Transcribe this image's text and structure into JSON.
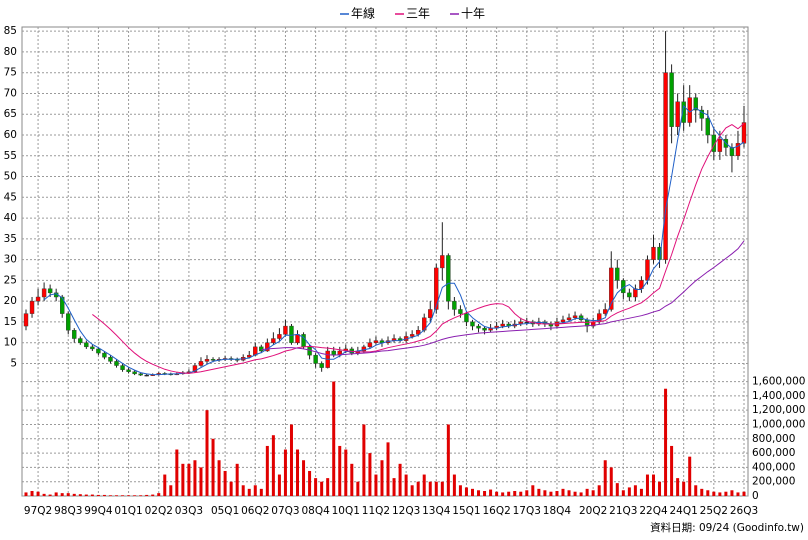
{
  "chart_data": {
    "type": "candlestick",
    "categories": [
      null,
      null,
      "97Q2",
      null,
      null,
      null,
      null,
      "98Q3",
      null,
      null,
      null,
      null,
      "99Q4",
      null,
      null,
      null,
      null,
      "01Q1",
      null,
      null,
      null,
      null,
      "02Q2",
      null,
      null,
      null,
      null,
      "03Q3",
      null,
      null,
      null,
      null,
      null,
      "05Q1",
      null,
      null,
      null,
      null,
      "06Q2",
      null,
      null,
      null,
      null,
      "07Q3",
      null,
      null,
      null,
      null,
      "08Q4",
      null,
      null,
      null,
      null,
      "10Q1",
      null,
      null,
      null,
      null,
      "11Q2",
      null,
      null,
      null,
      null,
      "12Q3",
      null,
      null,
      null,
      null,
      "13Q4",
      null,
      null,
      null,
      null,
      "15Q1",
      null,
      null,
      null,
      null,
      "16Q2",
      null,
      null,
      null,
      null,
      "17Q3",
      null,
      null,
      null,
      null,
      "18Q4",
      null,
      null,
      null,
      null,
      null,
      "20Q2",
      null,
      null,
      null,
      null,
      "21Q3",
      null,
      null,
      null,
      null,
      "22Q4",
      null,
      null,
      null,
      null,
      "24Q1",
      null,
      null,
      null,
      null,
      "25Q2",
      null,
      null,
      null,
      null,
      "26Q3"
    ],
    "open": [
      14,
      17,
      20,
      21,
      23,
      22,
      21,
      17,
      13,
      11,
      10,
      9,
      8.5,
      7.5,
      6.5,
      5.5,
      4.5,
      3.5,
      3,
      2.5,
      2.2,
      2.2,
      2.3,
      2.6,
      2.5,
      2.4,
      2.5,
      2.8,
      3,
      4.5,
      5.5,
      6,
      5.8,
      6,
      6.2,
      6,
      5.8,
      6.5,
      7,
      9,
      8,
      10,
      11,
      12,
      14,
      10,
      12,
      9,
      7,
      5,
      4,
      8,
      7,
      8,
      8.5,
      7.5,
      8,
      9,
      10,
      10.5,
      10,
      10.5,
      11,
      10.5,
      11.5,
      12,
      13,
      16,
      18,
      28,
      31,
      20,
      18,
      17,
      15,
      14,
      13.5,
      13,
      13.5,
      14,
      14.5,
      14,
      14.5,
      15,
      15,
      14.5,
      15,
      14.5,
      14,
      15,
      15.5,
      16,
      16.5,
      15.5,
      14,
      15,
      17,
      18,
      28,
      25,
      22,
      21,
      23,
      25,
      30,
      33,
      30,
      75,
      62,
      68,
      63,
      69,
      66,
      64,
      60,
      56,
      59,
      57,
      55,
      58
    ],
    "high": [
      18,
      21,
      23,
      24.5,
      24,
      23,
      21.5,
      17.5,
      13.5,
      11.5,
      10.5,
      9.5,
      9,
      8,
      7,
      6,
      5,
      4,
      3.3,
      2.8,
      2.5,
      2.6,
      2.9,
      2.9,
      2.8,
      2.8,
      3.2,
      3.6,
      5,
      6.5,
      7,
      6.5,
      6.5,
      6.8,
      6.7,
      6.4,
      7.2,
      8,
      10,
      9.5,
      11,
      12.5,
      13.5,
      15.5,
      14.5,
      13,
      12.5,
      9.5,
      7.5,
      5.5,
      9,
      9,
      9,
      9.5,
      9,
      9,
      9.5,
      11,
      11.5,
      11,
      11.5,
      12,
      11.5,
      12.5,
      13,
      14,
      17,
      20,
      29,
      39,
      31.5,
      21,
      19,
      17.5,
      15.5,
      14.5,
      14,
      14.5,
      15,
      15.5,
      15,
      15.5,
      16,
      16,
      15.5,
      16,
      15.5,
      15,
      16,
      16.5,
      17,
      17.5,
      17,
      16,
      16,
      18,
      19.5,
      32,
      30,
      25.5,
      23,
      24,
      26,
      31,
      36,
      34,
      85,
      77,
      70,
      72,
      72,
      70,
      67,
      66,
      62,
      61,
      60,
      58,
      61,
      67
    ],
    "low": [
      13,
      16,
      19,
      20,
      21,
      20,
      16,
      12,
      10,
      9.5,
      8.5,
      8,
      7,
      6,
      5,
      4,
      3,
      2.6,
      2.2,
      2,
      1.9,
      2,
      2.1,
      2.2,
      2.1,
      2.2,
      2.3,
      2.5,
      2.8,
      4.2,
      5,
      5.3,
      5.4,
      5.6,
      5.6,
      5.3,
      5.5,
      6.2,
      6.8,
      7.5,
      7.8,
      9.5,
      10.5,
      11.5,
      9.5,
      9.5,
      8.5,
      6,
      4,
      3,
      3.8,
      6.5,
      6.5,
      7.5,
      7,
      7,
      7.5,
      8.5,
      9.5,
      9,
      9.5,
      10,
      10,
      10,
      11,
      11.5,
      12.5,
      15,
      17,
      25,
      18,
      16.5,
      16,
      14,
      13,
      12.5,
      12,
      12.5,
      13,
      13.5,
      13.5,
      13.5,
      14,
      14.2,
      13.8,
      14,
      13.8,
      13,
      13.5,
      14.5,
      15,
      15.5,
      15,
      12.5,
      13.5,
      14.5,
      16.5,
      17.5,
      23,
      20.5,
      20,
      20,
      22,
      24,
      29,
      28,
      29,
      58,
      60,
      61,
      62,
      63,
      61,
      58,
      54,
      54,
      55,
      51,
      54,
      57
    ],
    "close": [
      17,
      20,
      21,
      23,
      22,
      21,
      17,
      13,
      11,
      10,
      9,
      8.5,
      7.5,
      6.5,
      5.5,
      4.5,
      3.5,
      3,
      2.5,
      2.2,
      2.2,
      2.3,
      2.6,
      2.5,
      2.4,
      2.5,
      2.8,
      3,
      4.5,
      5.5,
      6,
      5.8,
      6,
      6.2,
      6,
      5.8,
      6.5,
      7,
      9,
      8,
      10,
      11,
      12,
      14,
      10,
      12,
      9,
      7,
      5,
      4,
      8,
      7,
      8,
      8.5,
      7.5,
      8,
      9,
      10,
      10.5,
      10,
      10.5,
      11,
      10.5,
      11.5,
      12,
      13,
      16,
      18,
      28,
      31,
      20,
      18,
      17,
      15,
      14,
      13.5,
      13,
      13.5,
      14,
      14.5,
      14,
      14.5,
      15,
      15,
      14.5,
      15,
      14.5,
      14,
      15,
      15.5,
      16,
      16.5,
      15.5,
      14,
      15,
      17,
      18,
      28,
      25,
      22,
      21,
      23,
      25,
      30,
      33,
      30,
      75,
      62,
      68,
      63,
      69,
      66,
      64,
      60,
      56,
      59,
      57,
      55,
      58,
      63
    ],
    "volume": [
      50000,
      70000,
      60000,
      30000,
      20000,
      50000,
      40000,
      40000,
      30000,
      25000,
      20000,
      20000,
      15000,
      15000,
      10000,
      10000,
      10000,
      10000,
      10000,
      10000,
      15000,
      20000,
      40000,
      300000,
      150000,
      650000,
      450000,
      450000,
      500000,
      400000,
      1200000,
      800000,
      500000,
      350000,
      200000,
      450000,
      150000,
      100000,
      150000,
      100000,
      700000,
      850000,
      300000,
      650000,
      1000000,
      650000,
      500000,
      350000,
      250000,
      200000,
      250000,
      1600000,
      700000,
      650000,
      450000,
      200000,
      1000000,
      600000,
      300000,
      500000,
      750000,
      250000,
      450000,
      300000,
      150000,
      200000,
      300000,
      200000,
      200000,
      200000,
      1000000,
      300000,
      150000,
      120000,
      100000,
      80000,
      70000,
      90000,
      60000,
      50000,
      60000,
      70000,
      60000,
      80000,
      150000,
      100000,
      80000,
      60000,
      70000,
      100000,
      80000,
      60000,
      50000,
      100000,
      80000,
      150000,
      500000,
      400000,
      180000,
      80000,
      120000,
      150000,
      100000,
      300000,
      300000,
      200000,
      1500000,
      700000,
      250000,
      200000,
      550000,
      150000,
      100000,
      80000,
      60000,
      50000,
      60000,
      80000,
      50000,
      60000
    ],
    "up_color": "#ff0000",
    "down_color": "#00a000",
    "volume_color": "#e00000",
    "series": [
      {
        "name": "年線",
        "color": "#1f5fc8",
        "values": [
          null,
          null,
          null,
          20.3,
          21.5,
          21.8,
          20.8,
          18.3,
          15.5,
          12.8,
          10.8,
          9.6,
          8.8,
          7.9,
          7,
          6,
          5,
          4.1,
          3.4,
          2.8,
          2.5,
          2.3,
          2.3,
          2.4,
          2.5,
          2.5,
          2.6,
          2.7,
          3.2,
          4,
          4.8,
          5.5,
          5.8,
          6,
          6,
          6,
          6.1,
          6.3,
          7.1,
          7.6,
          8.5,
          9.5,
          10.3,
          11.8,
          11.8,
          12,
          11.3,
          9.5,
          8.3,
          6.3,
          6,
          6,
          6.8,
          7.9,
          7.8,
          8,
          8.3,
          8.6,
          9.4,
          9.9,
          10.3,
          10.5,
          10.5,
          10.9,
          11.3,
          11.8,
          13.1,
          14.8,
          18.8,
          23.3,
          24.3,
          24.3,
          21.5,
          17.5,
          16,
          14.9,
          13.9,
          13.5,
          13.5,
          13.8,
          14,
          14.3,
          14.5,
          14.6,
          14.8,
          14.9,
          14.8,
          14.5,
          14.6,
          14.8,
          15.1,
          15.8,
          15.9,
          15.5,
          15.3,
          15.4,
          16,
          19.5,
          22,
          23.3,
          24,
          22.8,
          22.8,
          24.8,
          27.8,
          29.5,
          42,
          50,
          58.8,
          67,
          65.5,
          66.5,
          65.5,
          64.8,
          61.5,
          59.8,
          58,
          56.8,
          57.3,
          58.3
        ]
      },
      {
        "name": "三年",
        "color": "#e0107a",
        "values": [
          null,
          null,
          null,
          null,
          null,
          null,
          null,
          null,
          null,
          null,
          null,
          16.8,
          15.7,
          14.5,
          13.2,
          11.8,
          10.3,
          8.8,
          7.5,
          6.4,
          5.5,
          4.8,
          4.2,
          3.6,
          3.2,
          2.9,
          2.7,
          2.6,
          2.8,
          3.0,
          3.3,
          3.6,
          3.9,
          4.2,
          4.5,
          4.8,
          5.1,
          5.5,
          5.9,
          6.1,
          6.5,
          6.9,
          7.4,
          8.0,
          8.3,
          8.8,
          9.0,
          9.1,
          9.0,
          8.8,
          8.7,
          8.5,
          8.3,
          8.1,
          7.9,
          7.8,
          7.8,
          7.8,
          8.0,
          8.4,
          8.8,
          9.1,
          9.4,
          9.7,
          10.0,
          10.4,
          10.8,
          11.5,
          12.8,
          14.5,
          15.3,
          16.0,
          16.6,
          17.2,
          17.7,
          18.3,
          18.8,
          19.2,
          19.4,
          19.3,
          18.6,
          17.0,
          15.8,
          15.2,
          14.8,
          14.6,
          14.5,
          14.5,
          14.5,
          14.6,
          14.7,
          14.8,
          14.9,
          14.9,
          15.0,
          15.1,
          15.3,
          16.4,
          17.2,
          17.8,
          18.3,
          19.0,
          19.6,
          20.7,
          22.0,
          23.1,
          27.2,
          31.2,
          35.6,
          39.6,
          43.9,
          48.0,
          51.8,
          54.8,
          57.5,
          59.8,
          61.7,
          62.5,
          61.5,
          62.8
        ]
      },
      {
        "name": "十年",
        "color": "#8a1fb0",
        "values": [
          null,
          null,
          null,
          null,
          null,
          null,
          null,
          null,
          null,
          null,
          null,
          null,
          null,
          null,
          null,
          null,
          null,
          null,
          null,
          null,
          null,
          null,
          null,
          null,
          null,
          null,
          null,
          null,
          null,
          null,
          null,
          null,
          null,
          null,
          null,
          null,
          null,
          null,
          null,
          8.3,
          8.5,
          8.6,
          8.7,
          8.8,
          8.8,
          8.7,
          8.5,
          8.2,
          7.8,
          7.4,
          7.1,
          7.0,
          7.1,
          7.2,
          7.3,
          7.4,
          7.5,
          7.6,
          7.8,
          8.0,
          8.1,
          8.3,
          8.5,
          8.7,
          8.9,
          9.1,
          9.4,
          9.8,
          10.3,
          10.8,
          11.2,
          11.5,
          11.7,
          11.9,
          12.1,
          12.3,
          12.4,
          12.5,
          12.6,
          12.7,
          12.8,
          12.9,
          13.0,
          13.1,
          13.2,
          13.3,
          13.4,
          13.5,
          13.6,
          13.7,
          13.8,
          13.9,
          14.0,
          14.1,
          14.2,
          14.4,
          14.6,
          15.0,
          15.3,
          15.6,
          15.9,
          16.2,
          16.5,
          16.9,
          17.4,
          17.8,
          18.8,
          19.6,
          20.9,
          22.2,
          23.6,
          24.9,
          26.0,
          27.1,
          28.1,
          29.2,
          30.3,
          31.4,
          32.6,
          34.5
        ]
      }
    ],
    "ylim": [
      1.5,
      86
    ],
    "yticks": [
      5,
      10,
      15,
      20,
      25,
      30,
      35,
      40,
      45,
      50,
      55,
      60,
      65,
      70,
      75,
      80,
      85
    ],
    "y2lim": [
      0,
      1650000
    ],
    "y2ticks": [
      0,
      {
        "value": 200000,
        "label": "200,000"
      },
      {
        "value": 400000,
        "label": "400,000"
      },
      {
        "value": 600000,
        "label": "600,000"
      },
      {
        "value": 800000,
        "label": "800,000"
      },
      {
        "value": 1000000,
        "label": "1,000,000"
      },
      {
        "value": 1200000,
        "label": "1,200,000"
      },
      {
        "value": 1400000,
        "label": "1,400,000"
      },
      {
        "value": 1600000,
        "label": "1,600,000"
      }
    ],
    "grid": true,
    "legend": "top",
    "footnote": "資料日期: 09/24  (Goodinfo.tw)"
  }
}
